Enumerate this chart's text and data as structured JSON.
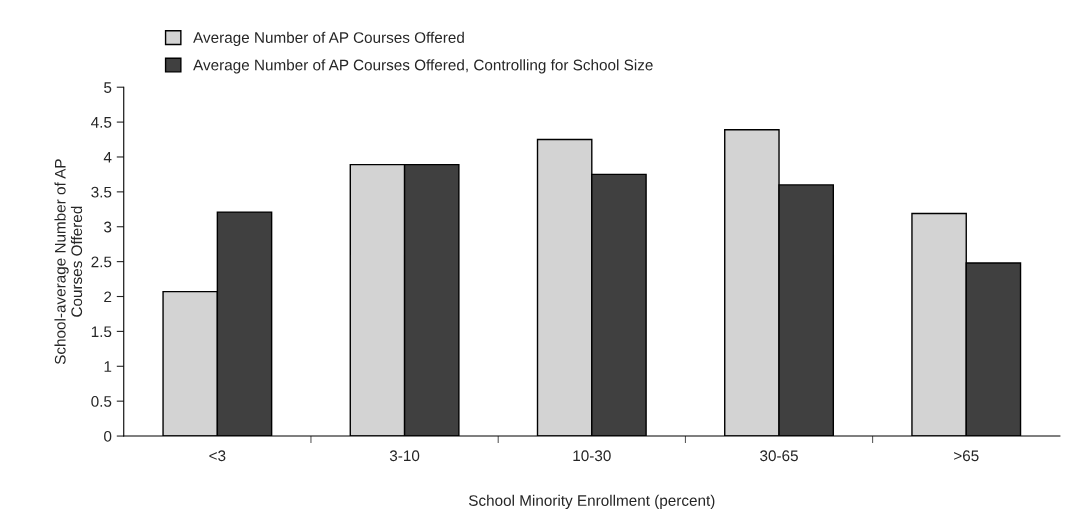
{
  "chart_data": {
    "type": "bar",
    "categories": [
      "<3",
      "3-10",
      "10-30",
      "30-65",
      ">65"
    ],
    "series": [
      {
        "name": "Average Number of AP Courses Offered",
        "color": "#d3d3d3",
        "values": [
          2.07,
          3.89,
          4.25,
          4.39,
          3.19
        ]
      },
      {
        "name": "Average Number of AP Courses Offered, Controlling for School Size",
        "color": "#404040",
        "values": [
          3.21,
          3.89,
          3.75,
          3.6,
          2.48
        ]
      }
    ],
    "xlabel": "School Minority Enrollment (percent)",
    "ylabel": "School-average Number of AP\nCourses Offered",
    "ylim": [
      0,
      5
    ],
    "yticks": [
      0,
      0.5,
      1,
      1.5,
      2,
      2.5,
      3,
      3.5,
      4,
      4.5,
      5
    ],
    "grid": false,
    "legend": "top left"
  }
}
